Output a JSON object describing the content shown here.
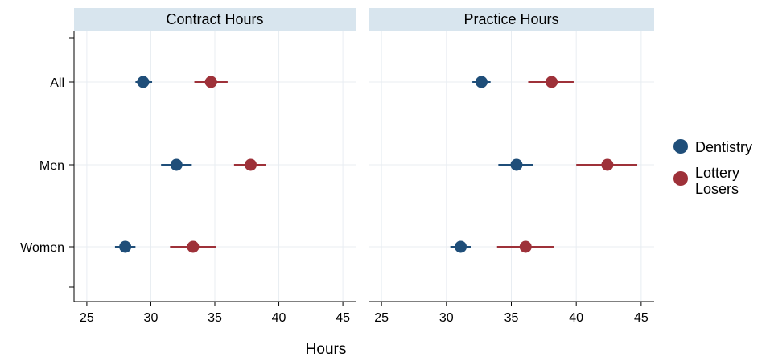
{
  "chart_data": {
    "type": "scatter",
    "subtype": "dot-and-whisker",
    "xlabel": "Hours",
    "xlim": [
      24,
      46
    ],
    "xticks": [
      25,
      30,
      35,
      40,
      45
    ],
    "categories": [
      "All",
      "Men",
      "Women"
    ],
    "panels": [
      {
        "title": "Contract Hours",
        "series": [
          {
            "name": "Dentistry",
            "color": "#1f4e79",
            "points": [
              {
                "category": "All",
                "value": 29.4,
                "low": 28.8,
                "high": 30.1
              },
              {
                "category": "Men",
                "value": 32.0,
                "low": 30.8,
                "high": 33.2
              },
              {
                "category": "Women",
                "value": 28.0,
                "low": 27.2,
                "high": 28.8
              }
            ]
          },
          {
            "name": "Lottery Losers",
            "color": "#9e3139",
            "points": [
              {
                "category": "All",
                "value": 34.7,
                "low": 33.4,
                "high": 36.0
              },
              {
                "category": "Men",
                "value": 37.8,
                "low": 36.5,
                "high": 39.0
              },
              {
                "category": "Women",
                "value": 33.3,
                "low": 31.5,
                "high": 35.1
              }
            ]
          }
        ]
      },
      {
        "title": "Practice Hours",
        "series": [
          {
            "name": "Dentistry",
            "color": "#1f4e79",
            "points": [
              {
                "category": "All",
                "value": 32.7,
                "low": 32.0,
                "high": 33.4
              },
              {
                "category": "Men",
                "value": 35.4,
                "low": 34.0,
                "high": 36.7
              },
              {
                "category": "Women",
                "value": 31.1,
                "low": 30.3,
                "high": 31.9
              }
            ]
          },
          {
            "name": "Lottery Losers",
            "color": "#9e3139",
            "points": [
              {
                "category": "All",
                "value": 38.1,
                "low": 36.3,
                "high": 39.8
              },
              {
                "category": "Men",
                "value": 42.4,
                "low": 40.0,
                "high": 44.7
              },
              {
                "category": "Women",
                "value": 36.1,
                "low": 33.9,
                "high": 38.3
              }
            ]
          }
        ]
      }
    ],
    "legend": {
      "placement": "right",
      "entries": [
        {
          "lines": [
            "Dentistry"
          ],
          "color": "#1f4e79"
        },
        {
          "lines": [
            "Lottery",
            "Losers"
          ],
          "color": "#9e3139"
        }
      ]
    },
    "colors": {
      "panel_header": "#d8e5ee",
      "grid": "#e8edf2",
      "axis": "#000000"
    }
  }
}
